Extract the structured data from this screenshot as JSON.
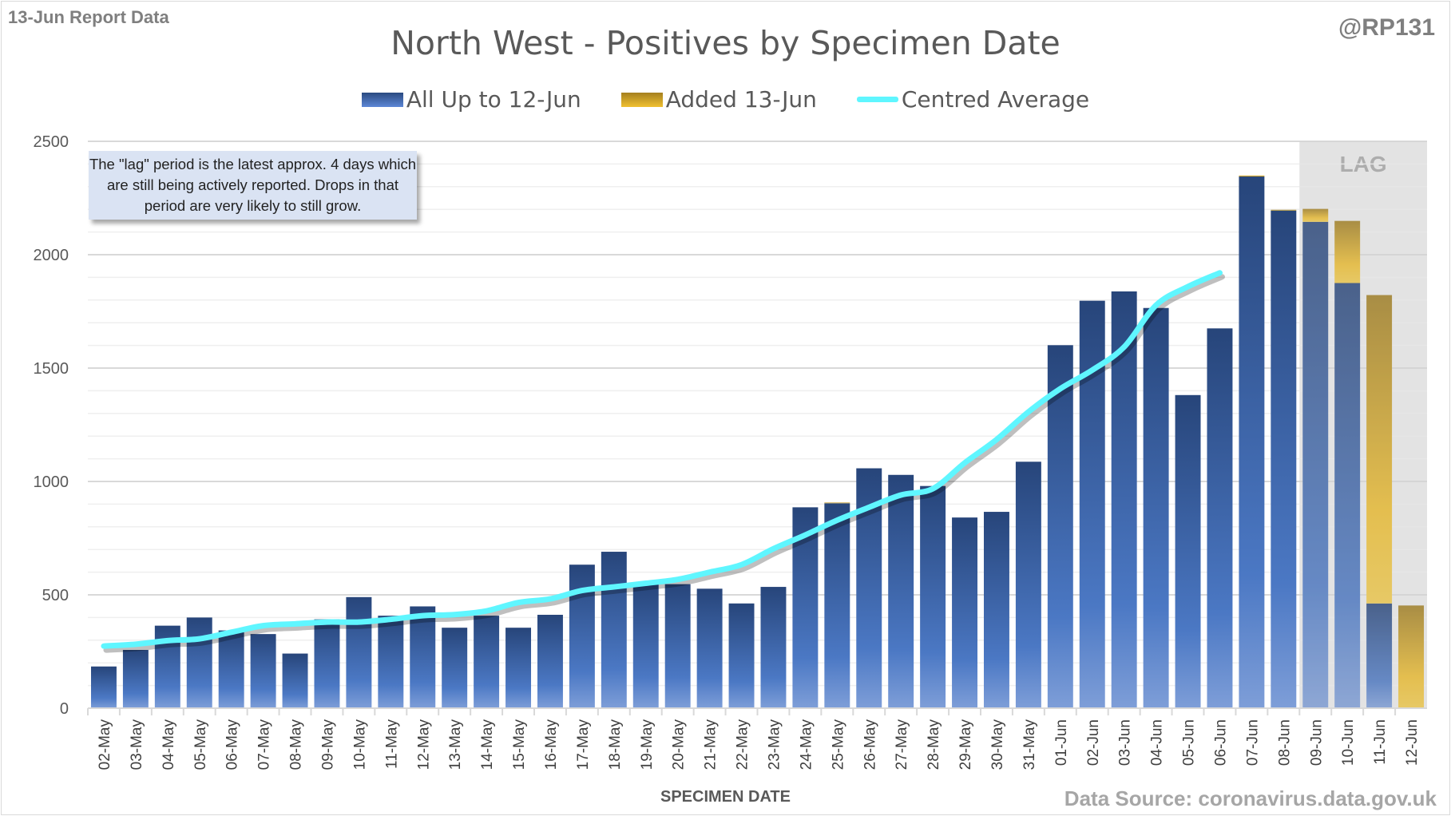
{
  "header": {
    "report": "13-Jun Report Data",
    "handle": "@RP131",
    "source": "Data Source: coronavirus.data.gov.uk"
  },
  "note": "The \"lag\" period is the latest approx. 4 days which are still being actively reported. Drops in that period are very likely to still grow.",
  "lag_label": "LAG",
  "colors": {
    "blue_top": "#27457a",
    "blue_bottom": "#7e9ed8",
    "gold_top": "#a07d20",
    "gold_bottom": "#f0c94a",
    "line": "#5ff6ff",
    "lag_bg": "#ebebeb"
  },
  "chart_data": {
    "type": "bar",
    "title": "North West - Positives by Specimen Date",
    "xlabel": "SPECIMEN DATE",
    "ylabel": "",
    "ylim": [
      0,
      2500
    ],
    "yticks": [
      0,
      500,
      1000,
      1500,
      2000,
      2500
    ],
    "grid": true,
    "legend_position": "top",
    "lag_start": "09-Jun",
    "categories": [
      "02-May",
      "03-May",
      "04-May",
      "05-May",
      "06-May",
      "07-May",
      "08-May",
      "09-May",
      "10-May",
      "11-May",
      "12-May",
      "13-May",
      "14-May",
      "15-May",
      "16-May",
      "17-May",
      "18-May",
      "19-May",
      "20-May",
      "21-May",
      "22-May",
      "23-May",
      "24-May",
      "25-May",
      "26-May",
      "27-May",
      "28-May",
      "29-May",
      "30-May",
      "31-May",
      "01-Jun",
      "02-Jun",
      "03-Jun",
      "04-Jun",
      "05-Jun",
      "06-Jun",
      "07-Jun",
      "08-Jun",
      "09-Jun",
      "10-Jun",
      "11-Jun",
      "12-Jun"
    ],
    "series": [
      {
        "name": "All Up to 12-Jun",
        "type": "bar",
        "values": [
          184,
          257,
          364,
          400,
          343,
          327,
          241,
          392,
          490,
          408,
          449,
          355,
          408,
          355,
          412,
          633,
          690,
          547,
          547,
          527,
          462,
          535,
          886,
          904,
          1058,
          1029,
          980,
          841,
          866,
          1087,
          1601,
          1797,
          1838,
          1765,
          1381,
          1675,
          2345,
          2195,
          2145,
          1875,
          462,
          0
        ]
      },
      {
        "name": "Added 13-Jun",
        "type": "bar",
        "values": [
          0,
          0,
          0,
          0,
          0,
          0,
          0,
          0,
          0,
          0,
          0,
          0,
          0,
          0,
          0,
          0,
          0,
          0,
          0,
          0,
          0,
          0,
          0,
          3,
          0,
          0,
          0,
          0,
          0,
          0,
          0,
          0,
          0,
          0,
          0,
          0,
          4,
          3,
          57,
          274,
          1360,
          453
        ]
      },
      {
        "name": "Centred Average",
        "type": "line",
        "values": [
          274,
          282,
          298,
          306,
          335,
          364,
          372,
          380,
          380,
          392,
          408,
          413,
          429,
          466,
          482,
          519,
          535,
          551,
          568,
          600,
          633,
          703,
          764,
          829,
          886,
          940,
          968,
          1082,
          1185,
          1307,
          1409,
          1491,
          1593,
          1777,
          1859,
          1920,
          null,
          null,
          null,
          null,
          null,
          null
        ]
      }
    ]
  }
}
